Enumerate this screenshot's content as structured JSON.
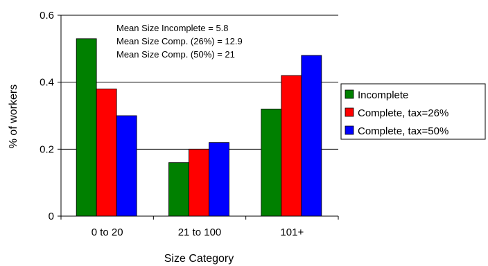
{
  "chart_data": {
    "type": "bar",
    "title": "",
    "xlabel": "Size Category",
    "ylabel": "% of workers",
    "categories": [
      "0 to 20",
      "21 to 100",
      "101+"
    ],
    "ylim": [
      0,
      0.6
    ],
    "yticks": [
      0,
      0.2,
      0.4,
      0.6
    ],
    "ytick_labels": [
      "0",
      "0.2",
      "0.4",
      "0.6"
    ],
    "grid": "horizontal",
    "legend_position": "right",
    "series": [
      {
        "name": "Incomplete",
        "color": "#008000",
        "values": [
          0.53,
          0.16,
          0.32
        ]
      },
      {
        "name": "Complete, tax=26%",
        "color": "#ff0000",
        "values": [
          0.38,
          0.2,
          0.42
        ]
      },
      {
        "name": "Complete, tax=50%",
        "color": "#0000ff",
        "values": [
          0.3,
          0.22,
          0.48
        ]
      }
    ],
    "annotations": [
      "Mean Size Incomplete = 5.8",
      "Mean Size Comp. (26%) = 12.9",
      "Mean Size Comp. (50%) = 21"
    ]
  }
}
